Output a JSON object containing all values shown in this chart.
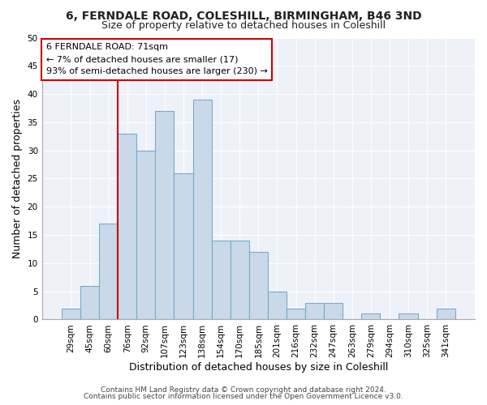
{
  "title": "6, FERNDALE ROAD, COLESHILL, BIRMINGHAM, B46 3ND",
  "subtitle": "Size of property relative to detached houses in Coleshill",
  "xlabel": "Distribution of detached houses by size in Coleshill",
  "ylabel": "Number of detached properties",
  "footer_line1": "Contains HM Land Registry data © Crown copyright and database right 2024.",
  "footer_line2": "Contains public sector information licensed under the Open Government Licence v3.0.",
  "bin_labels": [
    "29sqm",
    "45sqm",
    "60sqm",
    "76sqm",
    "92sqm",
    "107sqm",
    "123sqm",
    "138sqm",
    "154sqm",
    "170sqm",
    "185sqm",
    "201sqm",
    "216sqm",
    "232sqm",
    "247sqm",
    "263sqm",
    "279sqm",
    "294sqm",
    "310sqm",
    "325sqm",
    "341sqm"
  ],
  "bar_heights": [
    2,
    6,
    17,
    33,
    30,
    37,
    26,
    39,
    14,
    14,
    12,
    5,
    2,
    3,
    3,
    0,
    1,
    0,
    1,
    0,
    2
  ],
  "bar_color": "#c9d9ea",
  "bar_edge_color": "#7aaac8",
  "vline_color": "#cc0000",
  "annotation_box_edge_color": "#cc0000",
  "annotation_line1": "6 FERNDALE ROAD: 71sqm",
  "annotation_line2": "← 7% of detached houses are smaller (17)",
  "annotation_line3": "93% of semi-detached houses are larger (230) →",
  "ylim": [
    0,
    50
  ],
  "yticks": [
    0,
    5,
    10,
    15,
    20,
    25,
    30,
    35,
    40,
    45,
    50
  ],
  "plot_bg_color": "#eef2f8",
  "fig_bg_color": "#ffffff",
  "grid_color": "#ffffff",
  "title_fontsize": 10,
  "subtitle_fontsize": 9,
  "axis_label_fontsize": 9,
  "tick_fontsize": 7.5,
  "annotation_fontsize": 8,
  "footer_fontsize": 6.5
}
